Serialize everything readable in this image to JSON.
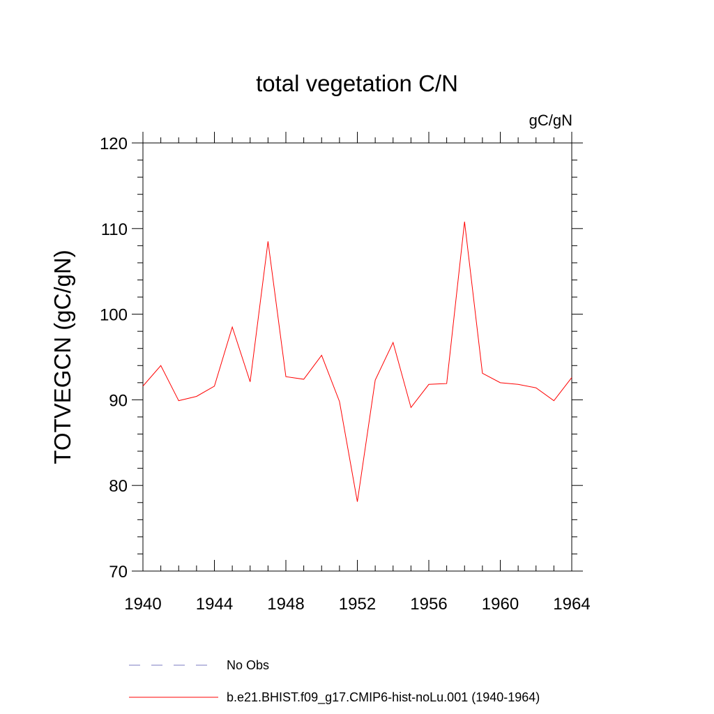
{
  "chart_data": {
    "type": "line",
    "title": "total vegetation C/N",
    "units": "gC/gN",
    "xlabel": "",
    "ylabel": "TOTVEGCN  (gC/gN)",
    "xlim": [
      1940,
      1964
    ],
    "ylim": [
      70,
      120
    ],
    "x_ticks": [
      1940,
      1944,
      1948,
      1952,
      1956,
      1960,
      1964
    ],
    "x_tick_labels": [
      "1940",
      "1944",
      "1948",
      "1952",
      "1956",
      "1960",
      "1964"
    ],
    "y_ticks": [
      70,
      80,
      90,
      100,
      110,
      120
    ],
    "y_tick_labels": [
      "70",
      "80",
      "90",
      "100",
      "110",
      "120"
    ],
    "grid": false,
    "legend_position": "bottom",
    "series": [
      {
        "name": "b.e21.BHIST.f09_g17.CMIP6-hist-noLu.001 (1940-1964)",
        "color": "#ff0000",
        "dash": "solid",
        "x": [
          1940,
          1941,
          1942,
          1943,
          1944,
          1945,
          1946,
          1947,
          1948,
          1949,
          1950,
          1951,
          1952,
          1953,
          1954,
          1955,
          1956,
          1957,
          1958,
          1959,
          1960,
          1961,
          1962,
          1963,
          1964
        ],
        "values": [
          91.6,
          94.0,
          89.9,
          90.4,
          91.6,
          98.5,
          92.1,
          108.5,
          92.7,
          92.4,
          95.2,
          89.8,
          78.1,
          92.3,
          96.7,
          89.1,
          91.8,
          91.9,
          110.8,
          93.1,
          92.0,
          91.8,
          91.4,
          89.9,
          92.6
        ]
      }
    ],
    "legend": [
      {
        "label": "No Obs",
        "color": "#7a7ac0",
        "dash": "dashed"
      },
      {
        "label": "b.e21.BHIST.f09_g17.CMIP6-hist-noLu.001 (1940-1964)",
        "color": "#ff0000",
        "dash": "solid"
      }
    ]
  }
}
